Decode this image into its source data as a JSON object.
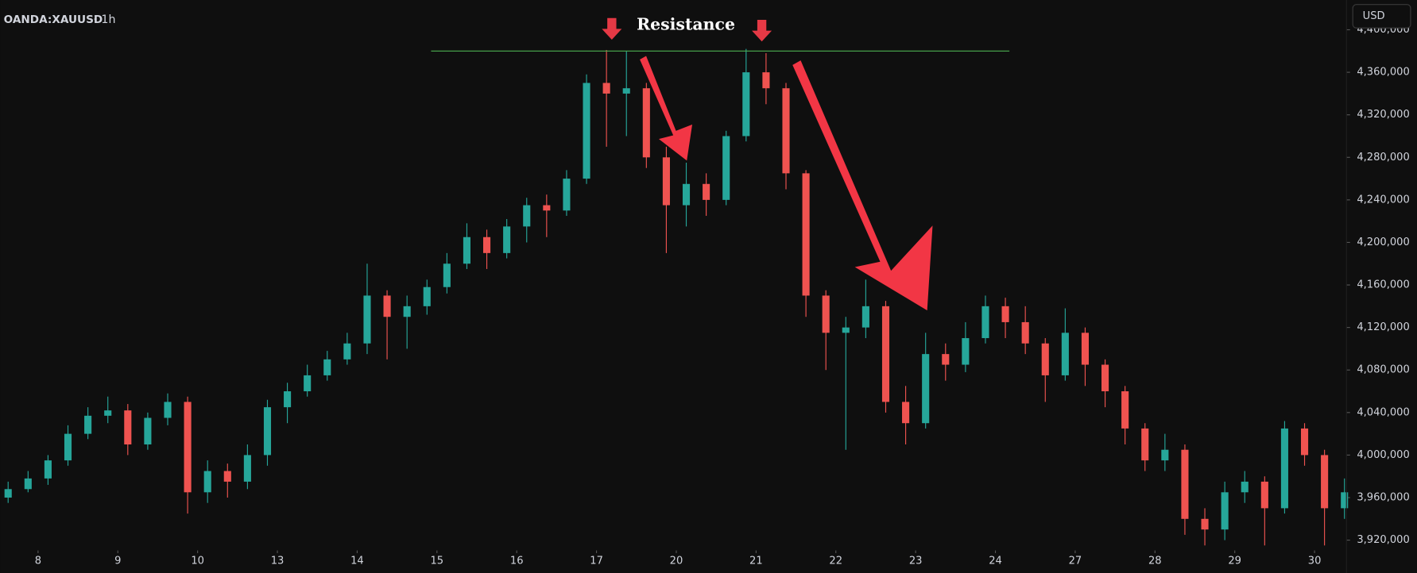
{
  "chart_data": {
    "type": "ohlc",
    "symbol": "OANDA:XAUUSD",
    "interval": "1h",
    "currency": "USD",
    "annotation": {
      "label": "Resistance",
      "value": 4380000,
      "color": "#4caf50"
    },
    "up_color": "#26a69a",
    "down_color": "#ef5350",
    "grid": false,
    "xlim": [
      -0.476,
      16.4
    ],
    "xticks": [
      {
        "value": 0,
        "label": "8"
      },
      {
        "value": 1,
        "label": "9"
      },
      {
        "value": 2,
        "label": "10"
      },
      {
        "value": 3,
        "label": "13"
      },
      {
        "value": 4,
        "label": "14"
      },
      {
        "value": 5,
        "label": "15"
      },
      {
        "value": 6,
        "label": "16"
      },
      {
        "value": 7,
        "label": "17"
      },
      {
        "value": 8,
        "label": "20"
      },
      {
        "value": 9,
        "label": "21"
      },
      {
        "value": 10,
        "label": "22"
      },
      {
        "value": 11,
        "label": "23"
      },
      {
        "value": 12,
        "label": "24"
      },
      {
        "value": 13,
        "label": "27"
      },
      {
        "value": 14,
        "label": "28"
      },
      {
        "value": 15,
        "label": "29"
      },
      {
        "value": 16,
        "label": "30"
      }
    ],
    "ylim": [
      3912000,
      4428000
    ],
    "yticks": [
      {
        "value": 3920000,
        "label": "3,920,000"
      },
      {
        "value": 3960000,
        "label": "3,960,000"
      },
      {
        "value": 4000000,
        "label": "4,000,000"
      },
      {
        "value": 4040000,
        "label": "4,040,000"
      },
      {
        "value": 4080000,
        "label": "4,080,000"
      },
      {
        "value": 4120000,
        "label": "4,120,000"
      },
      {
        "value": 4160000,
        "label": "4,160,000"
      },
      {
        "value": 4200000,
        "label": "4,200,000"
      },
      {
        "value": 4240000,
        "label": "4,240,000"
      },
      {
        "value": 4280000,
        "label": "4,280,000"
      },
      {
        "value": 4320000,
        "label": "4,320,000"
      },
      {
        "value": 4360000,
        "label": "4,360,000"
      },
      {
        "value": 4400000,
        "label": "4,400,000"
      }
    ],
    "x": [
      -0.375,
      -0.125,
      0.125,
      0.375,
      0.625,
      0.875,
      1.125,
      1.375,
      1.625,
      1.875,
      2.125,
      2.375,
      2.625,
      2.875,
      3.125,
      3.375,
      3.625,
      3.875,
      4.125,
      4.375,
      4.625,
      4.875,
      5.125,
      5.375,
      5.625,
      5.875,
      6.125,
      6.375,
      6.625,
      6.875,
      7.125,
      7.375,
      7.625,
      7.875,
      8.125,
      8.375,
      8.625,
      8.875,
      9.125,
      9.375,
      9.625,
      9.875,
      10.125,
      10.375,
      10.625,
      10.875,
      11.125,
      11.375,
      11.625,
      11.875,
      12.125,
      12.375,
      12.625,
      12.875,
      13.125,
      13.375,
      13.625,
      13.875,
      14.125,
      14.375,
      14.625,
      14.875,
      15.125,
      15.375,
      15.625,
      15.875,
      16.125,
      16.375
    ],
    "open": [
      3960000,
      3968000,
      3978000,
      3995000,
      4020000,
      4037000,
      4042000,
      4010000,
      4035000,
      4050000,
      3965000,
      3985000,
      3975000,
      4000000,
      4045000,
      4060000,
      4075000,
      4090000,
      4105000,
      4150000,
      4130000,
      4140000,
      4158000,
      4180000,
      4205000,
      4190000,
      4215000,
      4235000,
      4230000,
      4260000,
      4350000,
      4340000,
      4345000,
      4280000,
      4235000,
      4255000,
      4240000,
      4300000,
      4360000,
      4345000,
      4265000,
      4150000,
      4115000,
      4120000,
      4140000,
      4050000,
      4030000,
      4095000,
      4085000,
      4110000,
      4140000,
      4125000,
      4105000,
      4075000,
      4115000,
      4085000,
      4060000,
      4025000,
      3995000,
      4005000,
      3940000,
      3930000,
      3965000,
      3975000,
      3950000,
      4025000,
      4000000,
      3950000
    ],
    "high": [
      3975000,
      3985000,
      4000000,
      4028000,
      4045000,
      4055000,
      4048000,
      4040000,
      4058000,
      4055000,
      3995000,
      3992000,
      4010000,
      4052000,
      4068000,
      4085000,
      4098000,
      4115000,
      4180000,
      4155000,
      4150000,
      4165000,
      4190000,
      4218000,
      4212000,
      4222000,
      4242000,
      4245000,
      4268000,
      4358000,
      4381000,
      4380000,
      4350000,
      4290000,
      4275000,
      4265000,
      4305000,
      4382000,
      4378000,
      4350000,
      4268000,
      4155000,
      4130000,
      4165000,
      4145000,
      4065000,
      4115000,
      4105000,
      4125000,
      4150000,
      4148000,
      4140000,
      4110000,
      4138000,
      4120000,
      4090000,
      4065000,
      4030000,
      4020000,
      4010000,
      3950000,
      3975000,
      3985000,
      3980000,
      4032000,
      4030000,
      4005000,
      3978000
    ],
    "low": [
      3955000,
      3965000,
      3972000,
      3990000,
      4015000,
      4030000,
      4000000,
      4005000,
      4028000,
      3945000,
      3955000,
      3960000,
      3968000,
      3990000,
      4030000,
      4055000,
      4070000,
      4085000,
      4095000,
      4090000,
      4100000,
      4132000,
      4152000,
      4175000,
      4175000,
      4185000,
      4200000,
      4205000,
      4225000,
      4255000,
      4290000,
      4300000,
      4270000,
      4190000,
      4215000,
      4225000,
      4235000,
      4295000,
      4330000,
      4250000,
      4130000,
      4080000,
      4005000,
      4110000,
      4040000,
      4010000,
      4025000,
      4070000,
      4078000,
      4105000,
      4110000,
      4095000,
      4050000,
      4070000,
      4065000,
      4045000,
      4010000,
      3985000,
      3985000,
      3925000,
      3915000,
      3920000,
      3955000,
      3915000,
      3945000,
      3990000,
      3915000,
      3940000
    ],
    "close": [
      3968000,
      3978000,
      3995000,
      4020000,
      4037000,
      4042000,
      4010000,
      4035000,
      4050000,
      3965000,
      3985000,
      3975000,
      4000000,
      4045000,
      4060000,
      4075000,
      4090000,
      4105000,
      4150000,
      4130000,
      4140000,
      4158000,
      4180000,
      4205000,
      4190000,
      4215000,
      4235000,
      4230000,
      4260000,
      4350000,
      4340000,
      4345000,
      4280000,
      4235000,
      4255000,
      4240000,
      4300000,
      4360000,
      4345000,
      4265000,
      4150000,
      4115000,
      4120000,
      4140000,
      4050000,
      4030000,
      4095000,
      4085000,
      4110000,
      4140000,
      4125000,
      4105000,
      4075000,
      4115000,
      4085000,
      4060000,
      4025000,
      3995000,
      4005000,
      3940000,
      3930000,
      3965000,
      3975000,
      3950000,
      4025000,
      4000000,
      3950000,
      3965000
    ]
  }
}
